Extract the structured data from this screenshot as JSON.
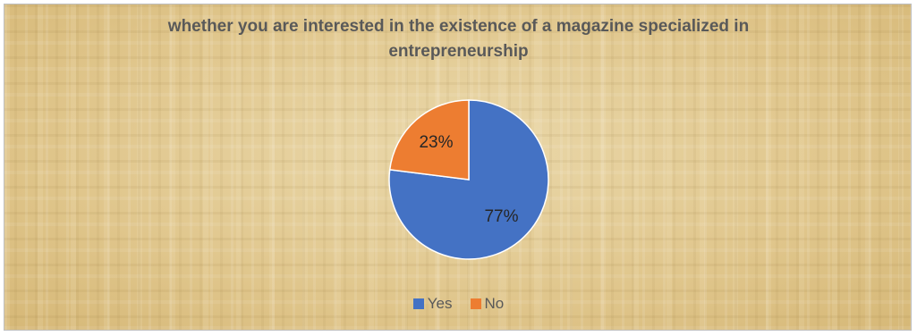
{
  "chart_data": {
    "type": "pie",
    "title_lines": [
      "whether you are interested in the existence of a magazine specialized in",
      "entrepreneurship"
    ],
    "slices": [
      {
        "label": "Yes",
        "value": 77,
        "display": "77%",
        "color": "#4472c4"
      },
      {
        "label": "No",
        "value": 23,
        "display": "23%",
        "color": "#ed7d31"
      }
    ],
    "legend_position": "bottom",
    "data_labels": "inside"
  }
}
